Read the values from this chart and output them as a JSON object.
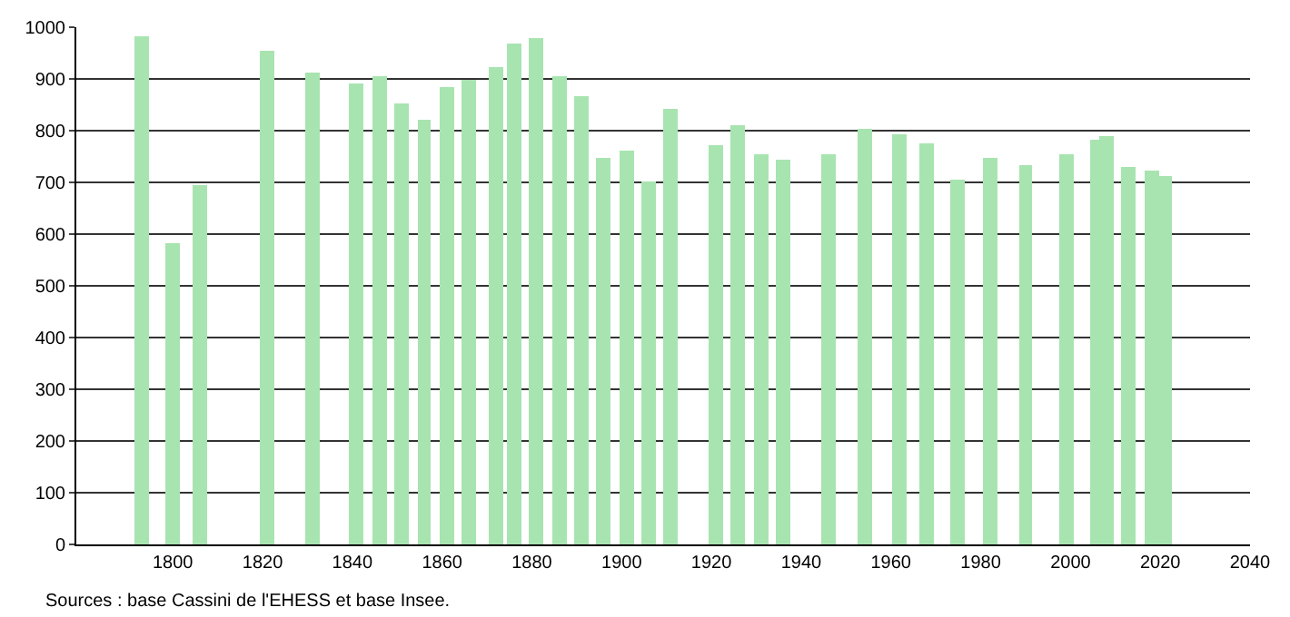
{
  "chart_data": {
    "type": "bar",
    "x": [
      1793,
      1800,
      1806,
      1821,
      1831,
      1841,
      1846,
      1851,
      1856,
      1861,
      1866,
      1872,
      1876,
      1881,
      1886,
      1891,
      1896,
      1901,
      1906,
      1911,
      1921,
      1926,
      1931,
      1936,
      1946,
      1954,
      1962,
      1968,
      1975,
      1982,
      1990,
      1999,
      2006,
      2008,
      2013,
      2018,
      2021
    ],
    "values": [
      983,
      583,
      695,
      954,
      911,
      891,
      907,
      853,
      822,
      883,
      897,
      922,
      969,
      980,
      907,
      866,
      747,
      761,
      703,
      841,
      772,
      810,
      753,
      745,
      753,
      805,
      793,
      776,
      707,
      747,
      733,
      755,
      784,
      791,
      731,
      724,
      714
    ],
    "color": "#a8e4b0",
    "xlim": [
      1778.5,
      2040
    ],
    "xticks": [
      1800,
      1820,
      1840,
      1860,
      1880,
      1900,
      1920,
      1940,
      1960,
      1980,
      2000,
      2020,
      2040
    ],
    "ylim": [
      0,
      1000
    ],
    "yticks": [
      0,
      100,
      200,
      300,
      400,
      500,
      600,
      700,
      800,
      900,
      1000
    ],
    "grid": "y",
    "annotations": [
      "Sources : base Cassini de l'EHESS et base Insee."
    ]
  }
}
